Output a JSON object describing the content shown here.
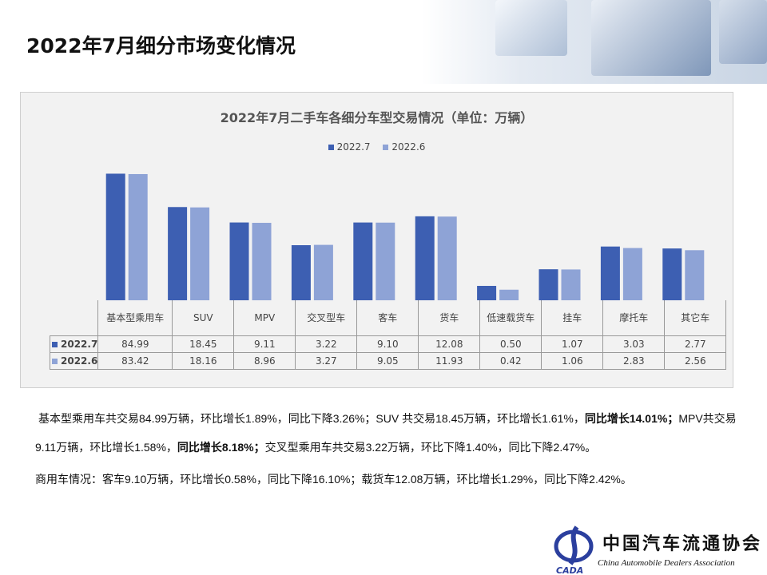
{
  "page_title": "2022年7月细分市场变化情况",
  "colors": {
    "s2022_7": "#3d5fb2",
    "s2022_6": "#8ea3d6"
  },
  "chart_data": {
    "type": "bar",
    "title": "2022年7月二手车各细分车型交易情况（单位：万辆）",
    "categories": [
      "基本型乘用车",
      "SUV",
      "MPV",
      "交叉型车",
      "客车",
      "货车",
      "低速载货车",
      "挂车",
      "摩托车",
      "其它车"
    ],
    "series": [
      {
        "name": "2022.7",
        "values": [
          84.99,
          18.45,
          9.11,
          3.22,
          9.1,
          12.08,
          0.5,
          1.07,
          3.03,
          2.77
        ],
        "labels": [
          "84.99",
          "18.45",
          "9.11",
          "3.22",
          "9.10",
          "12.08",
          "0.50",
          "1.07",
          "3.03",
          "2.77"
        ]
      },
      {
        "name": "2022.6",
        "values": [
          83.42,
          18.16,
          8.96,
          3.27,
          9.05,
          11.93,
          0.42,
          1.06,
          2.83,
          2.56
        ],
        "labels": [
          "83.42",
          "18.16",
          "8.96",
          "3.27",
          "9.05",
          "11.93",
          "0.42",
          "1.06",
          "2.83",
          "2.56"
        ]
      }
    ],
    "y_scale": "log",
    "legend": "top",
    "grid": false,
    "data_table": true
  },
  "text": {
    "p1_a": "基本型乘用车共交易84.99万辆，环比增长1.89%，同比下降3.26%；SUV 共交易18.45万辆，环比增长1.61%，",
    "p1_b": "同比增长14.01%；",
    "p1_c": "MPV共交易9.11万辆，环比增长1.58%，",
    "p1_d": "同比增长8.18%；",
    "p1_e": "交叉型乘用车共交易3.22万辆，环比下降1.40%，同比下降2.47%。",
    "p2": "商用车情况：客车9.10万辆，环比增长0.58%，同比下降16.10%；载货车12.08万辆，环比增长1.29%，同比下降2.42%。"
  },
  "logo": {
    "cn": "中国汽车流通协会",
    "en": "China Automobile Dealers Association",
    "abbr": "CADA"
  }
}
